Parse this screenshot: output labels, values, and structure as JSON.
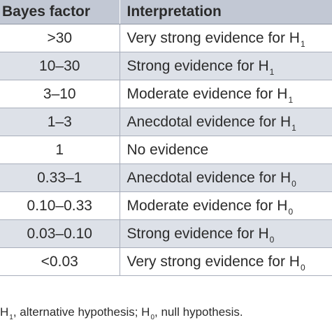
{
  "table": {
    "headers": {
      "bayes_factor": "Bayes factor",
      "interpretation": "Interpretation"
    },
    "rows": [
      {
        "bayes_factor": ">30",
        "interpretation": "Very strong evidence for H",
        "subscript": "1"
      },
      {
        "bayes_factor": "10–30",
        "interpretation": "Strong evidence for H",
        "subscript": "1"
      },
      {
        "bayes_factor": "3–10",
        "interpretation": "Moderate evidence for H",
        "subscript": "1"
      },
      {
        "bayes_factor": "1–3",
        "interpretation": "Anecdotal evidence for H",
        "subscript": "1"
      },
      {
        "bayes_factor": "1",
        "interpretation": "No evidence",
        "subscript": ""
      },
      {
        "bayes_factor": "0.33–1",
        "interpretation": "Anecdotal evidence for H",
        "subscript": "0"
      },
      {
        "bayes_factor": "0.10–0.33",
        "interpretation": "Moderate evidence for H",
        "subscript": "0"
      },
      {
        "bayes_factor": "0.03–0.10",
        "interpretation": "Strong evidence for H",
        "subscript": "0"
      },
      {
        "bayes_factor": "<0.03",
        "interpretation": "Very strong evidence for H",
        "subscript": "0"
      }
    ]
  },
  "footnote": {
    "part1": "H",
    "sub1": "1",
    "part2": ", alternative hypothesis; H",
    "sub2": "0",
    "part3": ", null hypothesis."
  },
  "colors": {
    "header_bg": "#c2c8d4",
    "shaded_row_bg": "#dde1e8",
    "text": "#2b2b2b"
  }
}
